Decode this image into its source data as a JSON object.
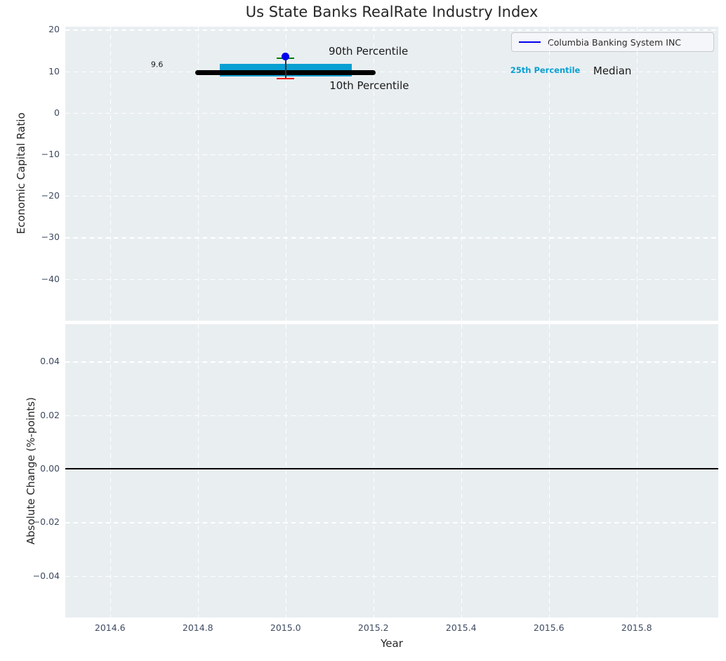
{
  "title": "Us State Banks RealRate Industry Index",
  "top_chart": {
    "ylabel": "Economic Capital Ratio",
    "legend_label": "Columbia Banking System INC"
  },
  "bottom_chart": {
    "ylabel": "Absolute Change (%-points)",
    "xlabel": "Year"
  },
  "colors": {
    "axes_background": "#e9eef1",
    "grid": "#ffffff",
    "band_cyan": "#089fd2",
    "median_black": "#000000",
    "company_blue": "#0000ee",
    "cap_90th_green": "#008000",
    "cap_10th_red": "#ee0000",
    "errorbar_line": "#2f2f2f",
    "tick_label": "#3e4b61",
    "text": "#262626",
    "zero_line": "#000000"
  },
  "chart_data": [
    {
      "type": "line",
      "title": "Us State Banks RealRate Industry Index",
      "xlabel": "",
      "ylabel": "Economic Capital Ratio",
      "xlim": [
        2014.498,
        2015.986
      ],
      "ylim": [
        -50.05,
        20.73
      ],
      "grid": true,
      "legend": [
        {
          "label": "Columbia Banking System INC",
          "color": "#0000ee",
          "position": "upper right"
        }
      ],
      "xticks": [
        {
          "value": 2014.6,
          "label": "2014.6"
        },
        {
          "value": 2014.8,
          "label": "2014.8"
        },
        {
          "value": 2015.0,
          "label": "2015.0"
        },
        {
          "value": 2015.2,
          "label": "2015.2"
        },
        {
          "value": 2015.4,
          "label": "2015.4"
        },
        {
          "value": 2015.6,
          "label": "2015.6"
        },
        {
          "value": 2015.8,
          "label": "2015.8"
        }
      ],
      "yticks": [
        {
          "value": 20,
          "label": "20"
        },
        {
          "value": 10,
          "label": "10"
        },
        {
          "value": 0,
          "label": "0"
        },
        {
          "value": -10,
          "label": "−10"
        },
        {
          "value": -20,
          "label": "−20"
        },
        {
          "value": -30,
          "label": "−30"
        },
        {
          "value": -40,
          "label": "−40"
        }
      ],
      "series": {
        "median_line": {
          "name": "Industry Median",
          "x": [
            2014.8,
            2015.2
          ],
          "y": 9.6,
          "color": "#000000",
          "linewidth": 7,
          "value_label": "9.6"
        },
        "iqr_band": {
          "name": "25th-75th Percentile Band",
          "x": [
            2014.85,
            2015.15
          ],
          "y_low": 8.8,
          "y_high": 11.7,
          "color": "#089fd2"
        },
        "company_point": {
          "name": "Columbia Banking System INC",
          "x": 2015.0,
          "y": 13.5,
          "color": "#0000ee",
          "p90": 13.1,
          "p10": 8.2
        }
      },
      "annotations": [
        {
          "id": "p90-label",
          "text": "90th Percentile",
          "x": 2015.098,
          "y": 14.82,
          "style": "large",
          "color": "#1a1a1a"
        },
        {
          "id": "p10-label",
          "text": "10th Percentile",
          "x": 2015.1,
          "y": 6.62,
          "style": "large",
          "color": "#1a1a1a"
        },
        {
          "id": "p25-label",
          "text": "25th Percentile",
          "x": 2015.512,
          "y": 10.26,
          "style": "cyan-bold",
          "color": "#089fd2"
        },
        {
          "id": "median-label",
          "text": "Median",
          "x": 2015.701,
          "y": 10.08,
          "style": "large",
          "color": "#1a1a1a"
        },
        {
          "id": "median-value",
          "text": "9.6",
          "x": 2014.693,
          "y": 11.61,
          "style": "small",
          "color": "#1a1a1a"
        }
      ]
    },
    {
      "type": "line",
      "title": "",
      "xlabel": "Year",
      "ylabel": "Absolute Change (%-points)",
      "xlim": [
        2014.498,
        2015.986
      ],
      "ylim": [
        -0.0556,
        0.054
      ],
      "grid": true,
      "zero_line": 0.0,
      "xticks": [
        {
          "value": 2014.6,
          "label": "2014.6"
        },
        {
          "value": 2014.8,
          "label": "2014.8"
        },
        {
          "value": 2015.0,
          "label": "2015.0"
        },
        {
          "value": 2015.2,
          "label": "2015.2"
        },
        {
          "value": 2015.4,
          "label": "2015.4"
        },
        {
          "value": 2015.6,
          "label": "2015.6"
        },
        {
          "value": 2015.8,
          "label": "2015.8"
        }
      ],
      "yticks": [
        {
          "value": 0.04,
          "label": "0.04"
        },
        {
          "value": 0.02,
          "label": "0.02"
        },
        {
          "value": 0.0,
          "label": "0.00"
        },
        {
          "value": -0.02,
          "label": "−0.02"
        },
        {
          "value": -0.04,
          "label": "−0.04"
        }
      ]
    }
  ]
}
